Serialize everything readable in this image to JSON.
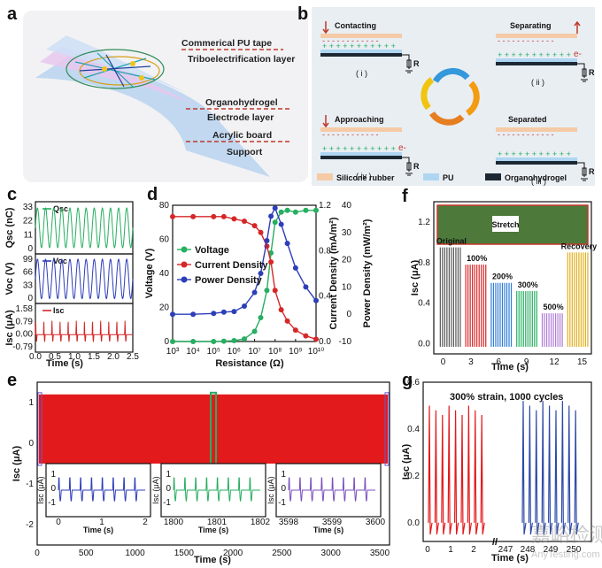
{
  "panels": {
    "a": "a",
    "b": "b",
    "c": "c",
    "d": "d",
    "e": "e",
    "f": "f",
    "g": "g"
  },
  "panel_a": {
    "labels": [
      "Commerical PU tape",
      "Triboelectrification layer",
      "Organohydrogel",
      "Electrode layer",
      "Acrylic board",
      "Support"
    ]
  },
  "panel_b": {
    "steps": [
      {
        "title": "Contacting",
        "num": "( i )"
      },
      {
        "title": "Separating",
        "num": "( ii )"
      },
      {
        "title": "Separated",
        "num": "( iii )"
      },
      {
        "title": "Approaching",
        "num": "( iv )"
      }
    ],
    "electron": "e-",
    "resistor": "R",
    "legend": [
      "Silicone rubber",
      "PU",
      "Organohydrogel"
    ],
    "colors": {
      "silicone": "#f5cba7",
      "pu": "#aed6f1",
      "hydrogel": "#1c2833",
      "plus": "#27ae60",
      "minus": "#c0392b"
    }
  },
  "chart_data": [
    {
      "id": "c",
      "type": "line",
      "xlabel": "Time (s)",
      "xlim": [
        0,
        2.5
      ],
      "xticks": [
        "0.0",
        "0.5",
        "1.0",
        "1.5",
        "2.0",
        "2.5"
      ],
      "series": [
        {
          "name": "Qsc",
          "ylabel": "Qsc (nC)",
          "yticks": [
            "33",
            "22",
            "11",
            "0"
          ],
          "ylim": [
            0,
            33
          ],
          "color": "#27ae60",
          "min": 2,
          "max": 31,
          "periods": 12
        },
        {
          "name": "Voc",
          "ylabel": "Voc (V)",
          "yticks": [
            "99",
            "66",
            "33",
            "0"
          ],
          "ylim": [
            0,
            99
          ],
          "color": "#2e3eb8",
          "min": 3,
          "max": 95,
          "periods": 12
        },
        {
          "name": "Isc",
          "ylabel": "Isc (μA)",
          "yticks": [
            "1.58",
            "0.79",
            "0.00",
            "-0.79"
          ],
          "ylim": [
            -0.79,
            1.58
          ],
          "color": "#d62728",
          "baseline": 0,
          "peak": 0.8,
          "trough": -0.4,
          "periods": 12
        }
      ]
    },
    {
      "id": "d",
      "type": "line",
      "xlabel": "Resistance (Ω)",
      "xticks": [
        "10³",
        "10⁴",
        "10⁵",
        "10⁶",
        "10⁷",
        "10⁸",
        "10⁹",
        "10¹⁰"
      ],
      "x_log10": [
        3,
        4,
        5,
        6,
        7,
        8,
        9,
        10
      ],
      "ylabel_left": "Voltage (V)",
      "ylim_left": [
        0,
        80
      ],
      "yticks_left": [
        "0",
        "20",
        "40",
        "60",
        "80"
      ],
      "ylabel_right1": "Current Density (mA/m²)",
      "ylim_right1": [
        0,
        1.2
      ],
      "yticks_right1": [
        "0.0",
        "0.4",
        "0.8",
        "1.2"
      ],
      "ylabel_right2": "Power Density (mW/m²)",
      "ylim_right2": [
        -10,
        40
      ],
      "yticks_right2": [
        "-10",
        "0",
        "10",
        "20",
        "30",
        "40"
      ],
      "legend": [
        "Voltage",
        "Current Density",
        "Power Density"
      ],
      "series": [
        {
          "name": "Voltage",
          "axis": "left",
          "color": "#27ae60",
          "x": [
            3,
            4,
            5,
            5.5,
            6,
            6.5,
            7,
            7.3,
            7.6,
            7.8,
            8,
            8.3,
            8.6,
            9,
            9.5,
            10
          ],
          "y": [
            0,
            0,
            0,
            0.2,
            0.5,
            1.5,
            6,
            14,
            30,
            52,
            70,
            76,
            77,
            76,
            77,
            77
          ]
        },
        {
          "name": "Current Density",
          "axis": "right1",
          "color": "#d62728",
          "x": [
            3,
            4,
            5,
            5.5,
            6,
            6.5,
            7,
            7.3,
            7.6,
            7.8,
            8,
            8.3,
            8.6,
            9,
            9.5,
            10
          ],
          "y": [
            1.1,
            1.1,
            1.1,
            1.1,
            1.08,
            1.06,
            1.02,
            0.96,
            0.84,
            0.7,
            0.45,
            0.28,
            0.18,
            0.1,
            0.05,
            0.02
          ]
        },
        {
          "name": "Power Density",
          "axis": "right2",
          "color": "#2e3eb8",
          "x": [
            3,
            4,
            5,
            5.5,
            6,
            6.5,
            7,
            7.3,
            7.6,
            7.8,
            8,
            8.3,
            8.6,
            9,
            9.5,
            10
          ],
          "y": [
            0,
            0,
            0.3,
            0.8,
            1,
            3,
            8,
            15,
            27,
            36,
            39,
            33,
            26,
            17,
            10,
            5
          ]
        }
      ]
    },
    {
      "id": "e",
      "type": "line",
      "xlabel": "Time (s)",
      "ylabel": "Isc (μA)",
      "xlim": [
        0,
        3600
      ],
      "ylim": [
        -2.5,
        1.5
      ],
      "xticks": [
        "0",
        "500",
        "1000",
        "1500",
        "2000",
        "2500",
        "3000",
        "3500"
      ],
      "yticks": [
        "1",
        "0",
        "-1",
        "-2"
      ],
      "band": {
        "low": -0.5,
        "high": 1.2,
        "color": "#e31a1c"
      },
      "insets": [
        {
          "xticks": [
            "0",
            "1",
            "2"
          ],
          "ylabel": "Isc (μA)",
          "yticks": [
            "1",
            "0",
            "-1"
          ],
          "color": "#2e3eb8"
        },
        {
          "xticks": [
            "1800",
            "1801",
            "1802"
          ],
          "ylabel": "Isc (μA)",
          "yticks": [
            "1",
            "0",
            "-1"
          ],
          "color": "#27ae60"
        },
        {
          "xticks": [
            "3598",
            "3599",
            "3600"
          ],
          "ylabel": "Isc (μA)",
          "yticks": [
            "1",
            "0",
            "-1"
          ],
          "color": "#7b4fbf"
        }
      ],
      "inset_xlabel": "Time (s)"
    },
    {
      "id": "f",
      "type": "line",
      "xlabel": "Time (s)",
      "ylabel": "Isc (μA)",
      "xlim": [
        -1,
        16
      ],
      "ylim": [
        -0.1,
        1.4
      ],
      "xticks": [
        "0",
        "3",
        "6",
        "9",
        "12",
        "15"
      ],
      "yticks": [
        "0.0",
        "0.4",
        "0.8",
        "1.2"
      ],
      "photo_label": "Stretch",
      "segments": [
        {
          "label": "Original",
          "color": "#555555",
          "peak": 0.95
        },
        {
          "label": "100%",
          "color": "#d62728",
          "peak": 0.78
        },
        {
          "label": "200%",
          "color": "#2e7bd6",
          "peak": 0.6
        },
        {
          "label": "300%",
          "color": "#27ae60",
          "peak": 0.52
        },
        {
          "label": "500%",
          "color": "#b07cd6",
          "peak": 0.3
        },
        {
          "label": "Recovery",
          "color": "#e0b020",
          "peak": 0.9
        }
      ]
    },
    {
      "id": "g",
      "type": "line",
      "xlabel": "Time (s)",
      "ylabel": "Isc (μA)",
      "ylim": [
        -0.08,
        0.6
      ],
      "xticks": [
        "0",
        "1",
        "2",
        "247",
        "248",
        "249",
        "250"
      ],
      "yticks": [
        "0.0",
        "0.2",
        "0.4",
        "0.6"
      ],
      "annotation": "300% strain, 1000 cycles",
      "series": [
        {
          "name": "start",
          "color": "#e31a1c",
          "peak": 0.5,
          "trough": -0.05,
          "count": 9
        },
        {
          "name": "end",
          "color": "#2e4aa8",
          "peak": 0.52,
          "trough": -0.05,
          "count": 9
        }
      ]
    }
  ],
  "watermark": {
    "cn": "嘉峪检测网",
    "en": "AnyTesting.com"
  }
}
